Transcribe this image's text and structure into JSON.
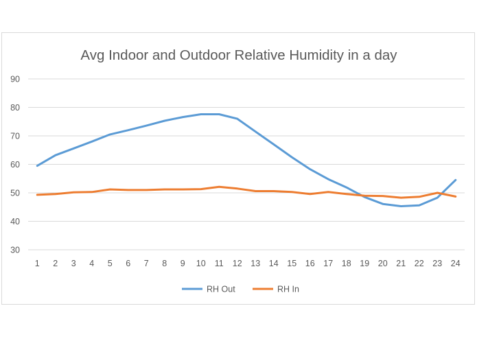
{
  "chart_data": {
    "type": "line",
    "title": "Avg Indoor and Outdoor Relative Humidity in a day",
    "xlabel": "",
    "ylabel": "",
    "x": [
      1,
      2,
      3,
      4,
      5,
      6,
      7,
      8,
      9,
      10,
      11,
      12,
      13,
      14,
      15,
      16,
      17,
      18,
      19,
      20,
      21,
      22,
      23,
      24
    ],
    "ylim": [
      30,
      90
    ],
    "yticks": [
      30,
      40,
      50,
      60,
      70,
      80,
      90
    ],
    "grid": true,
    "legend_position": "bottom",
    "series": [
      {
        "name": "RH Out",
        "color": "#5b9bd5",
        "values": [
          59.5,
          63.2,
          65.6,
          68.0,
          70.5,
          72.0,
          73.6,
          75.3,
          76.6,
          77.6,
          77.6,
          76.0,
          71.5,
          67.0,
          62.5,
          58.3,
          54.8,
          51.9,
          48.5,
          46.1,
          45.3,
          45.6,
          48.3,
          54.5
        ]
      },
      {
        "name": "RH In",
        "color": "#ed7d31",
        "values": [
          49.3,
          49.6,
          50.2,
          50.3,
          51.2,
          51.0,
          51.0,
          51.2,
          51.2,
          51.3,
          52.1,
          51.5,
          50.6,
          50.6,
          50.3,
          49.6,
          50.3,
          49.6,
          49.0,
          48.9,
          48.3,
          48.6,
          50.0,
          48.7
        ]
      }
    ]
  }
}
